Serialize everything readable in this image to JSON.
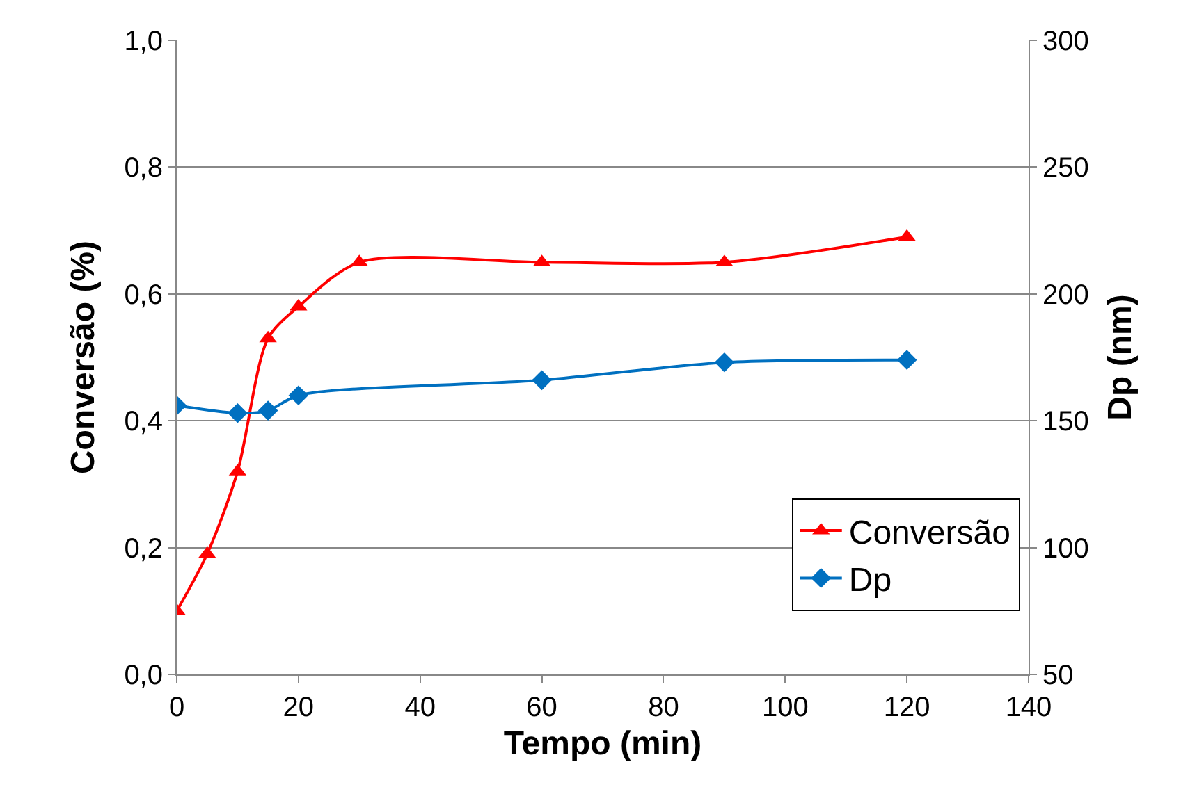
{
  "chart_data": {
    "type": "line",
    "xlabel": "Tempo (min)",
    "ylabel": "Conversão (%)",
    "y2label": "Dp (nm)",
    "xlim": [
      0,
      140
    ],
    "xticks": [
      0,
      20,
      40,
      60,
      80,
      100,
      120,
      140
    ],
    "ylim": [
      0,
      1
    ],
    "yticks": [
      {
        "value": 0,
        "label": "0,0"
      },
      {
        "value": 0.2,
        "label": "0,2"
      },
      {
        "value": 0.4,
        "label": "0,4"
      },
      {
        "value": 0.6,
        "label": "0,6"
      },
      {
        "value": 0.8,
        "label": "0,8"
      },
      {
        "value": 1,
        "label": "1,0"
      }
    ],
    "y2lim": [
      50,
      300
    ],
    "y2ticks": [
      50,
      100,
      150,
      200,
      250,
      300
    ],
    "grid": "y",
    "legend": "bottom right",
    "line_style": "solid",
    "series": [
      {
        "name": "Conversão",
        "color": "#ff0000",
        "marker": "triangle",
        "x": [
          0,
          5,
          10,
          15,
          20,
          30,
          60,
          90,
          120
        ],
        "values": [
          0.1,
          0.19,
          0.32,
          0.53,
          0.58,
          0.65,
          0.65,
          0.65,
          0.69
        ]
      },
      {
        "name": "Dp",
        "color": "#0070c0",
        "marker": "diamond",
        "axis": "y2",
        "x": [
          0,
          10,
          15,
          20,
          60,
          90,
          120
        ],
        "values": [
          156,
          153,
          154,
          160,
          166,
          173,
          174
        ]
      }
    ]
  }
}
